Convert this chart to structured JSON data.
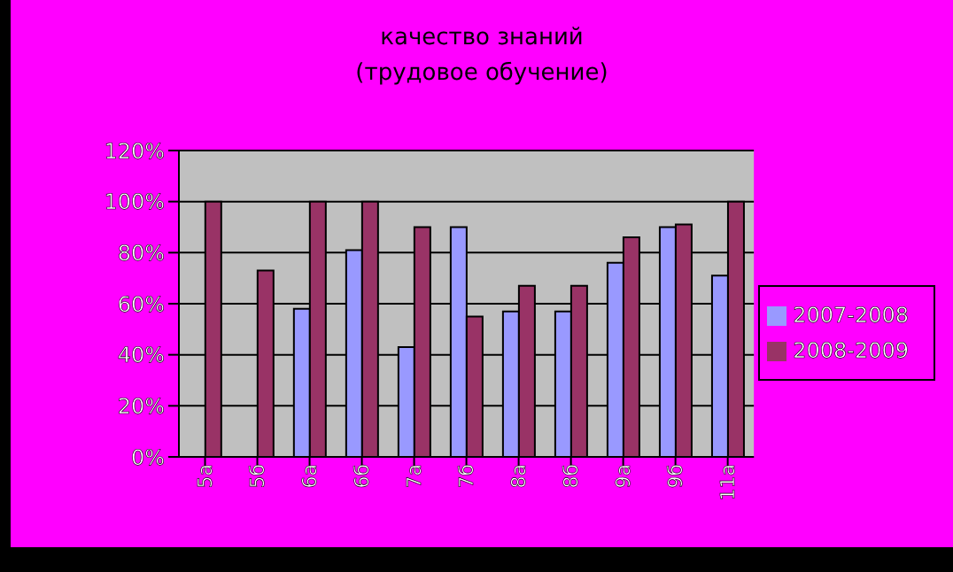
{
  "chart_data": {
    "type": "bar",
    "title": "качество знаний",
    "subtitle": "(трудовое обучение)",
    "categories": [
      "5а",
      "5б",
      "6а",
      "6б",
      "7а",
      "7б",
      "8а",
      "8б",
      "9а",
      "9б",
      "11а"
    ],
    "series": [
      {
        "name": "2007-2008",
        "color": "#9999ff",
        "values": [
          null,
          null,
          58,
          81,
          43,
          90,
          57,
          57,
          76,
          90,
          71
        ]
      },
      {
        "name": "2008-2009",
        "color": "#993366",
        "values": [
          100,
          73,
          100,
          100,
          90,
          55,
          67,
          67,
          86,
          91,
          100
        ]
      }
    ],
    "ylim": [
      0,
      120
    ],
    "yticks": [
      {
        "value": 0,
        "label": "0%"
      },
      {
        "value": 20,
        "label": "20%"
      },
      {
        "value": 40,
        "label": "40%"
      },
      {
        "value": 60,
        "label": "60%"
      },
      {
        "value": 80,
        "label": "80%"
      },
      {
        "value": 100,
        "label": "100%"
      },
      {
        "value": 120,
        "label": "120%"
      }
    ],
    "grid": "y",
    "legend": "right"
  }
}
